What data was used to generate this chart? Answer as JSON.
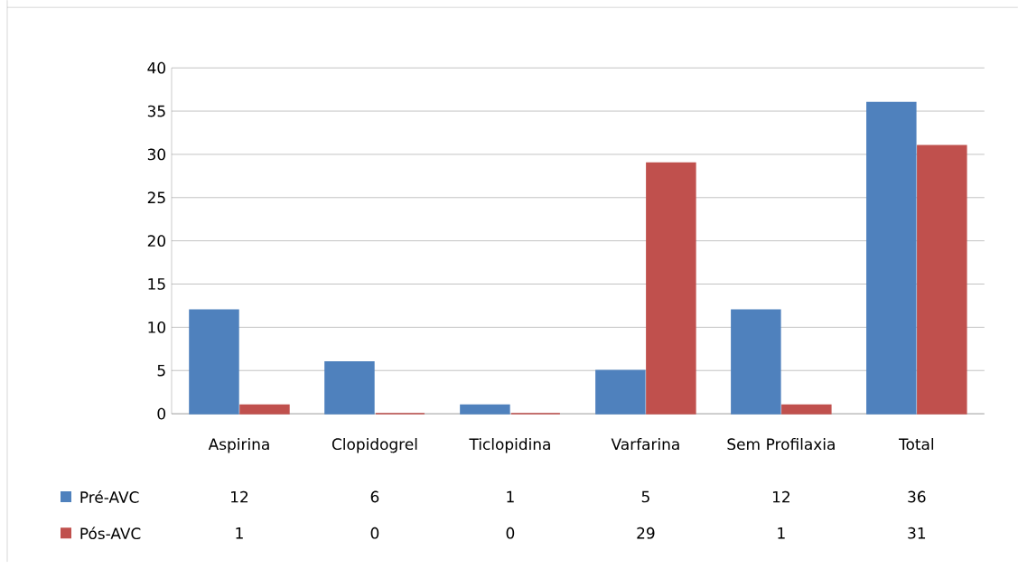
{
  "chart_data": {
    "type": "bar",
    "categories": [
      "Aspirina",
      "Clopidogrel",
      "Ticlopidina",
      "Varfarina",
      "Sem Profilaxia",
      "Total"
    ],
    "series": [
      {
        "name": "Pré-AVC",
        "color": "#4f81bd",
        "values": [
          12,
          6,
          1,
          5,
          12,
          36
        ]
      },
      {
        "name": "Pós-AVC",
        "color": "#c0504d",
        "values": [
          1,
          0,
          0,
          29,
          1,
          31
        ]
      }
    ],
    "ylim": [
      0,
      40
    ],
    "yticks": [
      0,
      5,
      10,
      15,
      20,
      25,
      30,
      35,
      40
    ],
    "grid": "y",
    "legend": "bottom",
    "data_labels": true
  }
}
